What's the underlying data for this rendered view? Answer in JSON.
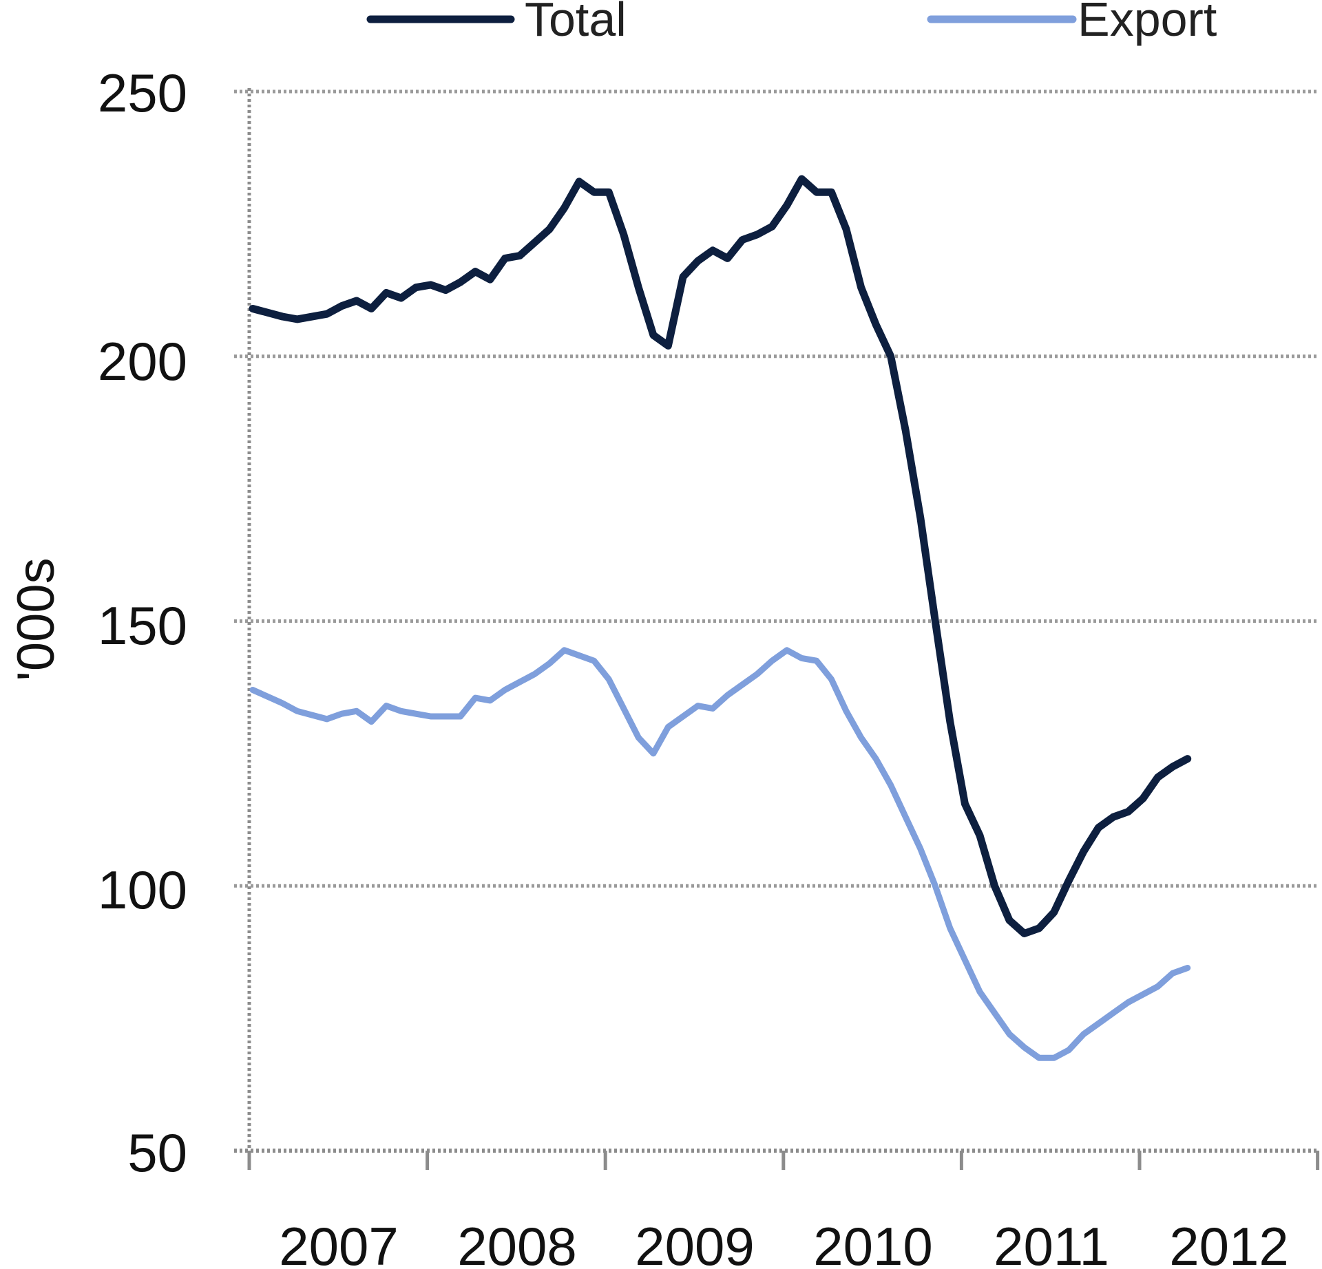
{
  "chart_data": {
    "type": "line",
    "title": "",
    "xlabel": "",
    "ylabel": "'000s",
    "ylim": [
      50,
      250
    ],
    "yticks": [
      50,
      100,
      150,
      200,
      250
    ],
    "ytick_labels": [
      "50",
      "100",
      "150",
      "200",
      "250"
    ],
    "xtick_labels": [
      "2007",
      "2008",
      "2009",
      "2010",
      "2011",
      "2012"
    ],
    "grid": {
      "horizontal": true,
      "vertical": false,
      "style": "dotted",
      "color": "#9a9a9a"
    },
    "legend": {
      "position": "top",
      "entries": [
        "Total",
        "Export"
      ]
    },
    "x_unit": "month index from Jan 2007",
    "x": [
      0,
      2,
      3,
      5,
      6,
      7,
      8,
      9,
      10,
      11,
      12,
      13,
      14,
      15,
      16,
      17,
      18,
      19,
      20,
      21,
      22,
      23,
      24,
      25,
      26,
      27,
      28,
      29,
      30,
      31,
      32,
      33,
      34,
      35,
      36,
      37,
      38,
      39,
      40,
      41,
      42,
      43,
      44,
      45,
      46,
      47,
      48,
      49,
      50,
      51,
      52,
      53,
      54,
      55,
      56,
      57,
      58,
      59,
      60,
      61,
      62,
      63
    ],
    "series": [
      {
        "name": "Total",
        "color": "#0d1f3f",
        "values": [
          209,
          207.5,
          207,
          208,
          209.5,
          210.5,
          209,
          212,
          211,
          213,
          213.5,
          212.5,
          214,
          216,
          214.5,
          218.5,
          219,
          221.5,
          224,
          228,
          233,
          231,
          231,
          223,
          213,
          204,
          202,
          215,
          218,
          220,
          218.5,
          222,
          223,
          224.5,
          228.5,
          233.5,
          231,
          231,
          224,
          213,
          206,
          200,
          186,
          169.5,
          150,
          131,
          115.5,
          109.5,
          100,
          93.5,
          91,
          92,
          95,
          101,
          106.5,
          111,
          113,
          114,
          116.5,
          120.5,
          122.5,
          124
        ]
      },
      {
        "name": "Export",
        "color": "#7f9fdc",
        "values": [
          137,
          134.5,
          133,
          131.5,
          132.5,
          133,
          131,
          134,
          133,
          132.5,
          132,
          132,
          132,
          135.5,
          135,
          137,
          138.5,
          140,
          142,
          144.5,
          143.5,
          142.5,
          139,
          133.5,
          128,
          125,
          130,
          132,
          134,
          133.5,
          136,
          138,
          140,
          142.5,
          144.5,
          143,
          142.5,
          139,
          133,
          128,
          124,
          119,
          113,
          107,
          100,
          92,
          86,
          80,
          76,
          72,
          69.5,
          67.5,
          67.5,
          69,
          72,
          74,
          76,
          78,
          79.5,
          81,
          83.5,
          84.5
        ]
      }
    ]
  },
  "legend": {
    "total_label": "Total",
    "export_label": "Export"
  },
  "axes": {
    "y_title": "'000s",
    "y_labels": [
      "250",
      "200",
      "150",
      "100",
      "50"
    ],
    "x_labels": [
      "2007",
      "2008",
      "2009",
      "2010",
      "2011",
      "2012"
    ]
  },
  "colors": {
    "total": "#0d1f3f",
    "export": "#7f9fdc",
    "grid": "#9a9a9a",
    "text": "#111111"
  }
}
